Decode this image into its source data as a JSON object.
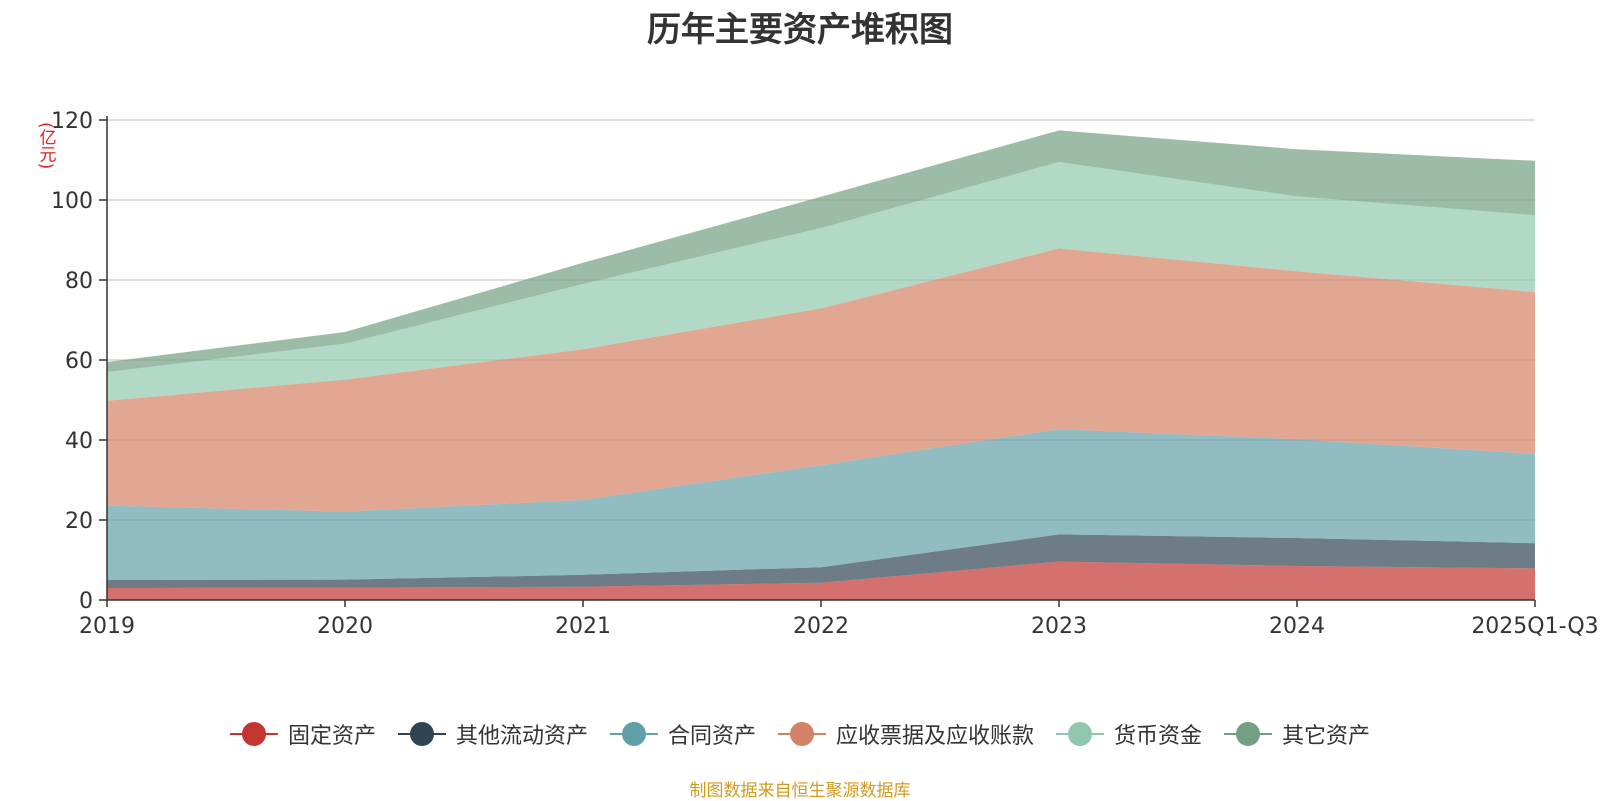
{
  "chart_data": {
    "type": "area",
    "stacked": true,
    "title": "历年主要资产堆积图",
    "unit_label": "(亿元)",
    "categories": [
      "2019",
      "2020",
      "2021",
      "2022",
      "2023",
      "2024",
      "2025Q1-Q3"
    ],
    "ylim": [
      0,
      120
    ],
    "yticks": [
      0,
      20,
      40,
      60,
      80,
      100,
      120
    ],
    "grid": true,
    "legend_position": "bottom",
    "series": [
      {
        "name": "固定资产",
        "color": "#c23531",
        "values": [
          3.0,
          3.1,
          3.3,
          4.3,
          9.6,
          8.5,
          7.9
        ]
      },
      {
        "name": "其他流动资产",
        "color": "#2f4554",
        "values": [
          2.0,
          2.0,
          3.0,
          3.9,
          6.8,
          7.0,
          6.3
        ]
      },
      {
        "name": "合同资产",
        "color": "#61a0a8",
        "values": [
          18.6,
          17.0,
          18.7,
          25.5,
          26.3,
          24.7,
          22.3
        ]
      },
      {
        "name": "应收票据及应收账款",
        "color": "#d48265",
        "values": [
          26.2,
          33.0,
          37.7,
          39.2,
          45.2,
          42.0,
          40.5
        ]
      },
      {
        "name": "货币资金",
        "color": "#91c7ae",
        "values": [
          7.2,
          9.0,
          16.3,
          20.1,
          21.6,
          18.7,
          19.2
        ]
      },
      {
        "name": "其它资产",
        "color": "#749f83",
        "values": [
          2.5,
          2.9,
          5.3,
          7.8,
          7.9,
          11.8,
          13.6
        ]
      }
    ],
    "source_note": "制图数据来自恒生聚源数据库"
  }
}
